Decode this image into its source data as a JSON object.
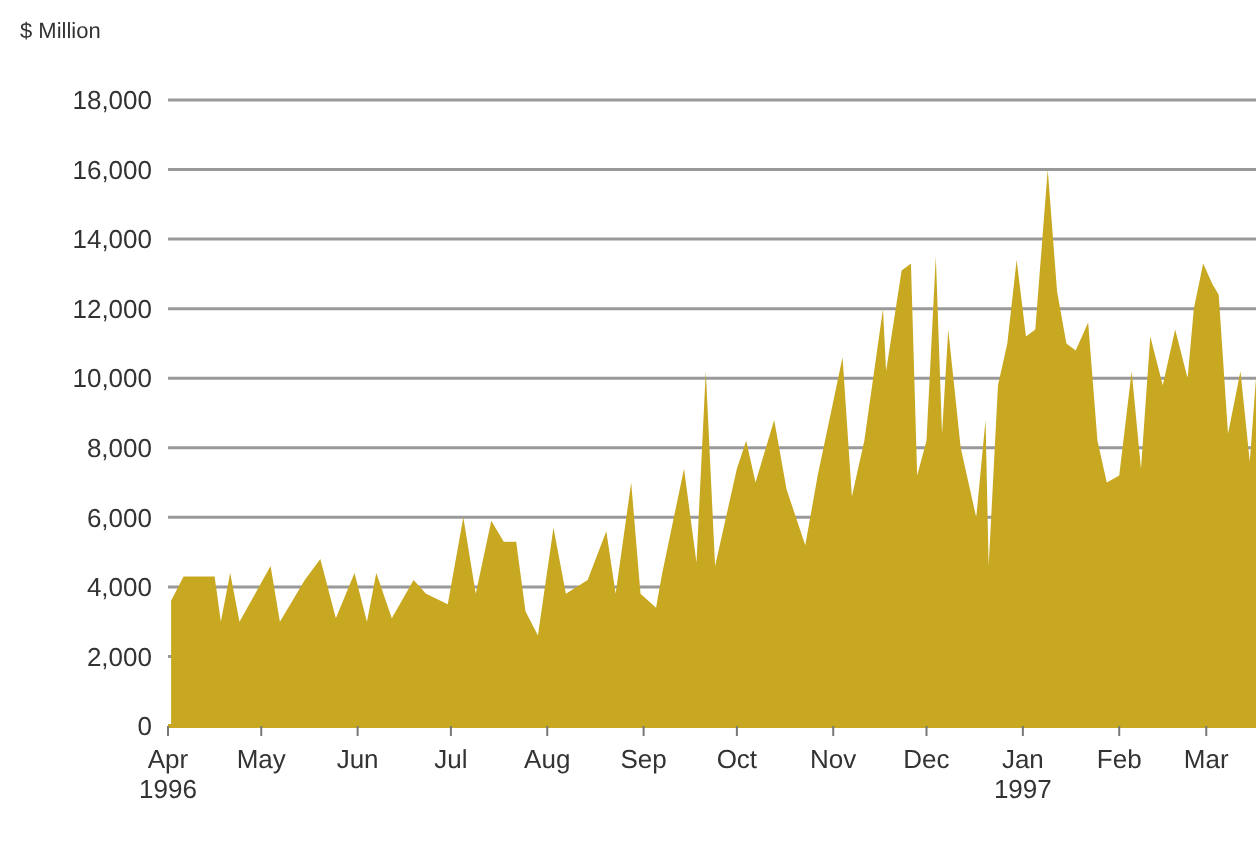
{
  "chart_data": {
    "type": "area",
    "ylabel": "$ Million",
    "color": "#c8a820",
    "grid": "y",
    "xlim": [
      "1996-04-01",
      "1997-03-17"
    ],
    "xticks": [
      {
        "value": "1996-04-01",
        "label": "Apr\n1996"
      },
      {
        "value": "1996-05-01",
        "label": "May"
      },
      {
        "value": "1996-06-01",
        "label": "Jun"
      },
      {
        "value": "1996-07-01",
        "label": "Jul"
      },
      {
        "value": "1996-08-01",
        "label": "Aug"
      },
      {
        "value": "1996-09-01",
        "label": "Sep"
      },
      {
        "value": "1996-10-01",
        "label": "Oct"
      },
      {
        "value": "1996-11-01",
        "label": "Nov"
      },
      {
        "value": "1996-12-01",
        "label": "Dec"
      },
      {
        "value": "1997-01-01",
        "label": "Jan\n1997"
      },
      {
        "value": "1997-02-01",
        "label": "Feb"
      },
      {
        "value": "1997-03-01",
        "label": "Mar"
      }
    ],
    "ylim": [
      0,
      18000
    ],
    "yticks": [
      {
        "value": 0,
        "label": "0"
      },
      {
        "value": 2000,
        "label": "2,000"
      },
      {
        "value": 4000,
        "label": "4,000"
      },
      {
        "value": 6000,
        "label": "6,000"
      },
      {
        "value": 8000,
        "label": "8,000"
      },
      {
        "value": 10000,
        "label": "10,000"
      },
      {
        "value": 12000,
        "label": "12,000"
      },
      {
        "value": 14000,
        "label": "14,000"
      },
      {
        "value": 16000,
        "label": "16,000"
      },
      {
        "value": 18000,
        "label": "18,000"
      }
    ],
    "x": [
      "1996-04-02",
      "1996-04-06",
      "1996-04-16",
      "1996-04-18",
      "1996-04-21",
      "1996-04-24",
      "1996-05-04",
      "1996-05-07",
      "1996-05-15",
      "1996-05-20",
      "1996-05-25",
      "1996-05-31",
      "1996-06-04",
      "1996-06-07",
      "1996-06-12",
      "1996-06-19",
      "1996-06-23",
      "1996-06-30",
      "1996-07-05",
      "1996-07-09",
      "1996-07-14",
      "1996-07-18",
      "1996-07-22",
      "1996-07-25",
      "1996-07-29",
      "1996-08-03",
      "1996-08-07",
      "1996-08-14",
      "1996-08-20",
      "1996-08-23",
      "1996-08-28",
      "1996-08-31",
      "1996-09-05",
      "1996-09-07",
      "1996-09-14",
      "1996-09-18",
      "1996-09-21",
      "1996-09-24",
      "1996-10-01",
      "1996-10-04",
      "1996-10-07",
      "1996-10-13",
      "1996-10-17",
      "1996-10-23",
      "1996-10-27",
      "1996-11-04",
      "1996-11-07",
      "1996-11-11",
      "1996-11-17",
      "1996-11-18",
      "1996-11-23",
      "1996-11-26",
      "1996-11-28",
      "1996-12-01",
      "1996-12-04",
      "1996-12-06",
      "1996-12-08",
      "1996-12-12",
      "1996-12-17",
      "1996-12-20",
      "1996-12-21",
      "1996-12-24",
      "1996-12-27",
      "1996-12-30",
      "1997-01-02",
      "1997-01-05",
      "1997-01-09",
      "1997-01-12",
      "1997-01-15",
      "1997-01-18",
      "1997-01-22",
      "1997-01-25",
      "1997-01-28",
      "1997-02-01",
      "1997-02-05",
      "1997-02-08",
      "1997-02-11",
      "1997-02-15",
      "1997-02-19",
      "1997-02-23",
      "1997-02-25",
      "1997-02-28",
      "1997-03-03",
      "1997-03-05",
      "1997-03-08",
      "1997-03-12",
      "1997-03-15",
      "1997-03-17"
    ],
    "values": [
      3600,
      4300,
      4300,
      3000,
      4400,
      3000,
      4600,
      3000,
      4200,
      4800,
      3100,
      4400,
      3000,
      4400,
      3100,
      4200,
      3800,
      3500,
      6000,
      3800,
      5900,
      5300,
      5300,
      3300,
      2600,
      5700,
      3800,
      4200,
      5600,
      3800,
      7000,
      3800,
      3400,
      4400,
      7400,
      4700,
      10200,
      4600,
      7400,
      8200,
      7000,
      8800,
      6800,
      5200,
      7200,
      10600,
      6600,
      8200,
      12000,
      10200,
      13100,
      13300,
      7200,
      8200,
      13500,
      8400,
      11400,
      8000,
      6000,
      8800,
      4600,
      9800,
      11000,
      13400,
      11200,
      11400,
      16000,
      12500,
      11000,
      10800,
      11600,
      8200,
      7000,
      7200,
      10200,
      7400,
      11200,
      9800,
      11400,
      10000,
      12000,
      13300,
      12700,
      12400,
      8400,
      10200,
      7600,
      10000
    ]
  }
}
